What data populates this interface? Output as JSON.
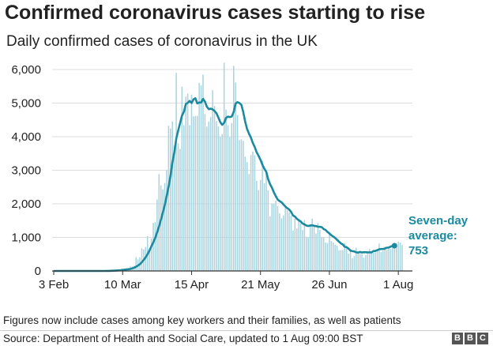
{
  "title": "Confirmed coronavirus cases starting to rise",
  "subtitle": "Daily confirmed cases of coronavirus in the UK",
  "footnote": "Figures now include cases among key workers and their families, as well as patients",
  "source": "Source: Department of Health and Social Care, updated to 1 Aug 09:00 BST",
  "logo": [
    "B",
    "B",
    "C"
  ],
  "colors": {
    "bars": "#a9d3de",
    "line": "#1b8a9e",
    "grid": "#dddddd",
    "axis": "#333333"
  },
  "chart_data": {
    "type": "bar",
    "title": "Confirmed coronavirus cases starting to rise",
    "subtitle": "Daily confirmed cases of coronavirus in the UK",
    "x_start": "3 Feb",
    "x_end": "1 Aug",
    "x_ticks": [
      {
        "label": "3 Feb",
        "day": 0
      },
      {
        "label": "10 Mar",
        "day": 36
      },
      {
        "label": "15 Apr",
        "day": 72
      },
      {
        "label": "21 May",
        "day": 108
      },
      {
        "label": "26 Jun",
        "day": 144
      },
      {
        "label": "1 Aug",
        "day": 180
      }
    ],
    "y_ticks": [
      0,
      1000,
      2000,
      3000,
      4000,
      5000,
      6000
    ],
    "y_tick_labels": [
      "0",
      "1,000",
      "2,000",
      "3,000",
      "4,000",
      "5,000",
      "6,000"
    ],
    "ylim": [
      0,
      6000
    ],
    "grid": true,
    "series": [
      {
        "kind": "bars",
        "values": [
          0,
          0,
          0,
          0,
          0,
          1,
          0,
          0,
          1,
          0,
          0,
          0,
          1,
          0,
          0,
          0,
          1,
          0,
          1,
          0,
          0,
          0,
          0,
          0,
          0,
          1,
          3,
          2,
          5,
          12,
          12,
          11,
          16,
          34,
          30,
          48,
          48,
          67,
          46,
          84,
          134,
          133,
          152,
          409,
          343,
          407,
          676,
          643,
          714,
          1035,
          665,
          967,
          1427,
          1452,
          2129,
          2885,
          2546,
          2433,
          2619,
          3009,
          4324,
          4244,
          4450,
          3735,
          5903,
          3802,
          3634,
          5491,
          4344,
          5195,
          5288,
          4342,
          5252,
          4605,
          4618,
          4617,
          5599,
          5525,
          5850,
          4676,
          4301,
          4451,
          4583,
          5386,
          4913,
          4463,
          4309,
          3996,
          4076,
          6201,
          4806,
          4339,
          3985,
          4406,
          6111,
          5614,
          4649,
          3896,
          3923,
          3877,
          3403,
          3242,
          2888,
          3450,
          3560,
          3451,
          2684,
          2412,
          2715,
          3287,
          2615,
          2959,
          2405,
          1625,
          2013,
          2004,
          2095,
          1937,
          1715,
          1570,
          1653,
          1887,
          1805,
          1741,
          1650,
          1205,
          1557,
          1266,
          1541,
          1425,
          1221,
          1514,
          1019,
          1005,
          1386,
          1558,
          1341,
          1114,
          1425,
          1221,
          1013,
          1006,
          844,
          833,
          1109,
          889,
          851,
          779,
          752,
          609,
          623,
          624,
          832,
          674,
          513,
          630,
          380,
          442,
          695,
          577,
          512,
          503,
          394,
          479,
          545,
          650,
          582,
          540,
          557,
          595,
          815,
          564,
          600,
          726,
          643,
          735,
          650,
          767,
          718,
          721,
          873,
          846,
          771
        ]
      },
      {
        "kind": "line",
        "name": "Seven-day average",
        "values": [
          0,
          0,
          0,
          0,
          0,
          0,
          0,
          0,
          0,
          0,
          0,
          0,
          0,
          0,
          0,
          0,
          0,
          0,
          0,
          0,
          0,
          0,
          0,
          0,
          0,
          0,
          1,
          1,
          2,
          3,
          5,
          7,
          10,
          14,
          19,
          24,
          30,
          37,
          44,
          51,
          59,
          76,
          96,
          124,
          159,
          201,
          258,
          330,
          405,
          497,
          610,
          733,
          850,
          980,
          1145,
          1327,
          1524,
          1736,
          1959,
          2232,
          2511,
          2830,
          3233,
          3538,
          3942,
          4176,
          4398,
          4624,
          4744,
          4971,
          5007,
          5063,
          5002,
          5111,
          5144,
          4990,
          5018,
          5016,
          5125,
          5045,
          4895,
          4819,
          4835,
          4812,
          4767,
          4697,
          4570,
          4432,
          4352,
          4412,
          4557,
          4597,
          4583,
          4601,
          4737,
          4983,
          5029,
          5002,
          4949,
          4731,
          4449,
          4230,
          4088,
          3972,
          3812,
          3692,
          3540,
          3429,
          3311,
          3168,
          3050,
          2955,
          2735,
          2585,
          2480,
          2338,
          2226,
          2126,
          2078,
          2047,
          1978,
          1919,
          1869,
          1830,
          1758,
          1652,
          1620,
          1555,
          1508,
          1474,
          1414,
          1384,
          1354,
          1339,
          1356,
          1359,
          1345,
          1334,
          1319,
          1313,
          1307,
          1247,
          1220,
          1163,
          1121,
          1067,
          1025,
          984,
          930,
          874,
          820,
          788,
          720,
          708,
          660,
          607,
          590,
          582,
          556,
          545,
          566,
          550,
          560,
          558,
          555,
          555,
          552,
          593,
          598,
          618,
          645,
          653,
          655,
          665,
          693,
          697,
          726,
          743,
          753
        ]
      }
    ],
    "annotation": {
      "lines": [
        "Seven-day",
        "average:",
        "753"
      ],
      "value": 753
    }
  }
}
